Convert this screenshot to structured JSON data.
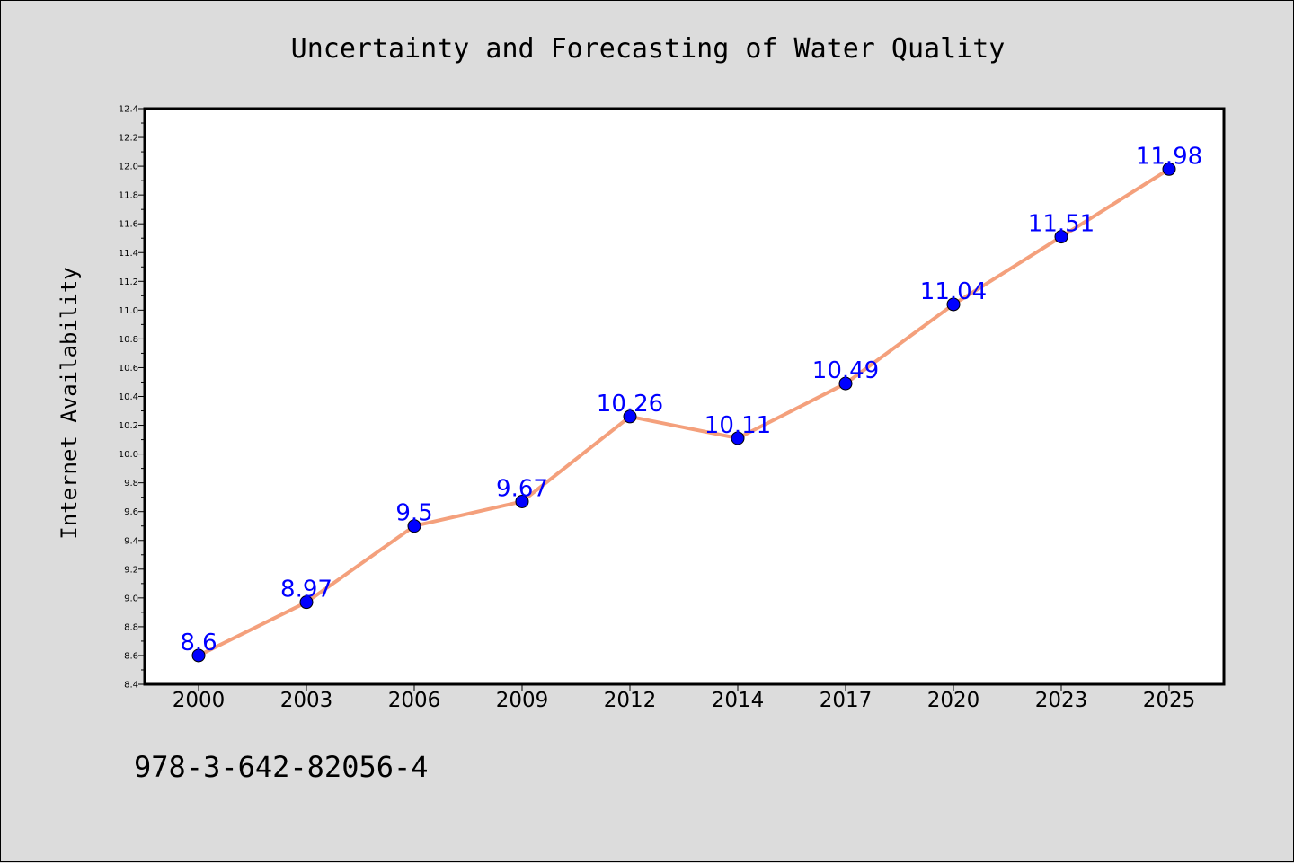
{
  "chart_data": {
    "type": "line",
    "title": "Uncertainty and Forecasting of Water Quality",
    "xlabel": "",
    "ylabel": "Internet Availability",
    "categories": [
      "2000",
      "2003",
      "2006",
      "2009",
      "2012",
      "2014",
      "2017",
      "2020",
      "2023",
      "2025"
    ],
    "series": [
      {
        "values": [
          8.6,
          8.97,
          9.5,
          9.67,
          10.26,
          10.11,
          10.49,
          11.04,
          11.51,
          11.98
        ],
        "data_labels": [
          "8.6",
          "8.97",
          "9.5",
          "9.67",
          "10.26",
          "10.11",
          "10.49",
          "11.04",
          "11.51",
          "11.98"
        ],
        "line_color": "#f4a07c",
        "marker_color": "#0000ff",
        "label_color": "#0000ff"
      }
    ],
    "ylim": [
      8.4,
      12.4
    ],
    "yticks": [
      "8.4",
      "8.6",
      "8.8",
      "9.0",
      "9.2",
      "9.4",
      "9.6",
      "9.8",
      "10.0",
      "10.2",
      "10.4",
      "10.6",
      "10.8",
      "11.0",
      "11.2",
      "11.4",
      "11.6",
      "11.8",
      "12.0",
      "12.2",
      "12.4"
    ],
    "grid": false,
    "legend": "none"
  },
  "footer_text": "978-3-642-82056-4",
  "colors": {
    "background": "#dcdcdc",
    "plot_background": "#ffffff"
  }
}
